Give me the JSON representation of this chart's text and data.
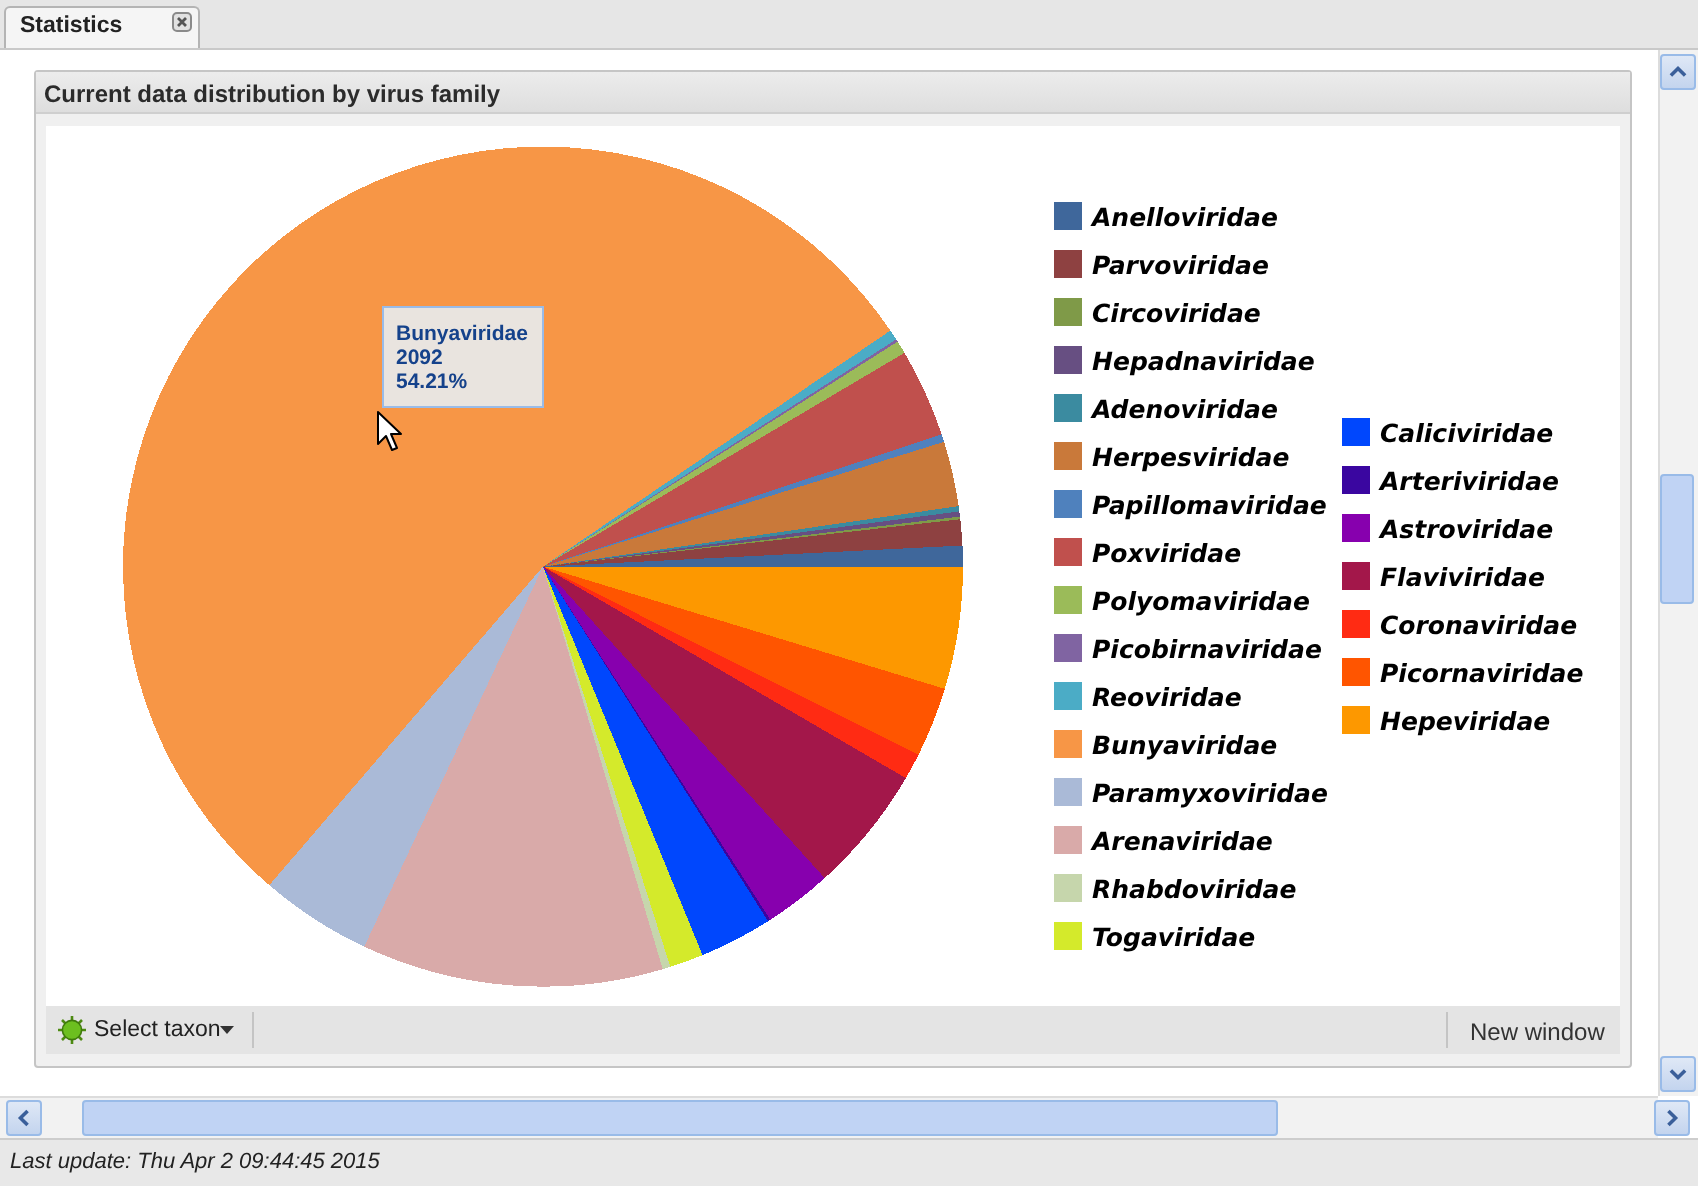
{
  "chart_data": {
    "type": "pie",
    "title": "Current data distribution by virus family",
    "categories": [
      "Anelloviridae",
      "Parvoviridae",
      "Circoviridae",
      "Hepadnaviridae",
      "Adenoviridae",
      "Herpesviridae",
      "Papillomaviridae",
      "Poxviridae",
      "Polyomaviridae",
      "Picobirnaviridae",
      "Reoviridae",
      "Bunyaviridae",
      "Paramyxoviridae",
      "Arenaviridae",
      "Rhabdoviridae",
      "Togaviridae",
      "Caliciviridae",
      "Arteriviridae",
      "Astroviridae",
      "Flaviviridae",
      "Coronaviridae",
      "Picornaviridae",
      "Hepeviridae"
    ],
    "values": [
      0.8,
      1.0,
      0.1,
      0.2,
      0.2,
      2.5,
      0.3,
      3.4,
      0.5,
      0.1,
      0.4,
      54.21,
      4.3,
      11.6,
      0.3,
      1.3,
      2.8,
      0.1,
      2.6,
      4.9,
      1.0,
      2.7,
      4.7
    ],
    "colors": [
      "#3f679b",
      "#8e4141",
      "#7f9a48",
      "#674f82",
      "#3b8ba0",
      "#c9793a",
      "#4f81bd",
      "#c0504d",
      "#9bbb59",
      "#8064a2",
      "#4bacc6",
      "#f79646",
      "#aabad7",
      "#d9aaa9",
      "#c6d6ac",
      "#d4ea2b",
      "#0047fd",
      "#3a06a0",
      "#8700ae",
      "#a3174a",
      "#ff2b13",
      "#ff5500",
      "#fd9800"
    ],
    "legend": "right",
    "annotations": [
      "Bunyaviridae\n2092\n54.21%",
      "Statistics",
      "Select taxon",
      "New window",
      "Last update: Thu Apr 2 09:44:45 2015"
    ]
  }
}
